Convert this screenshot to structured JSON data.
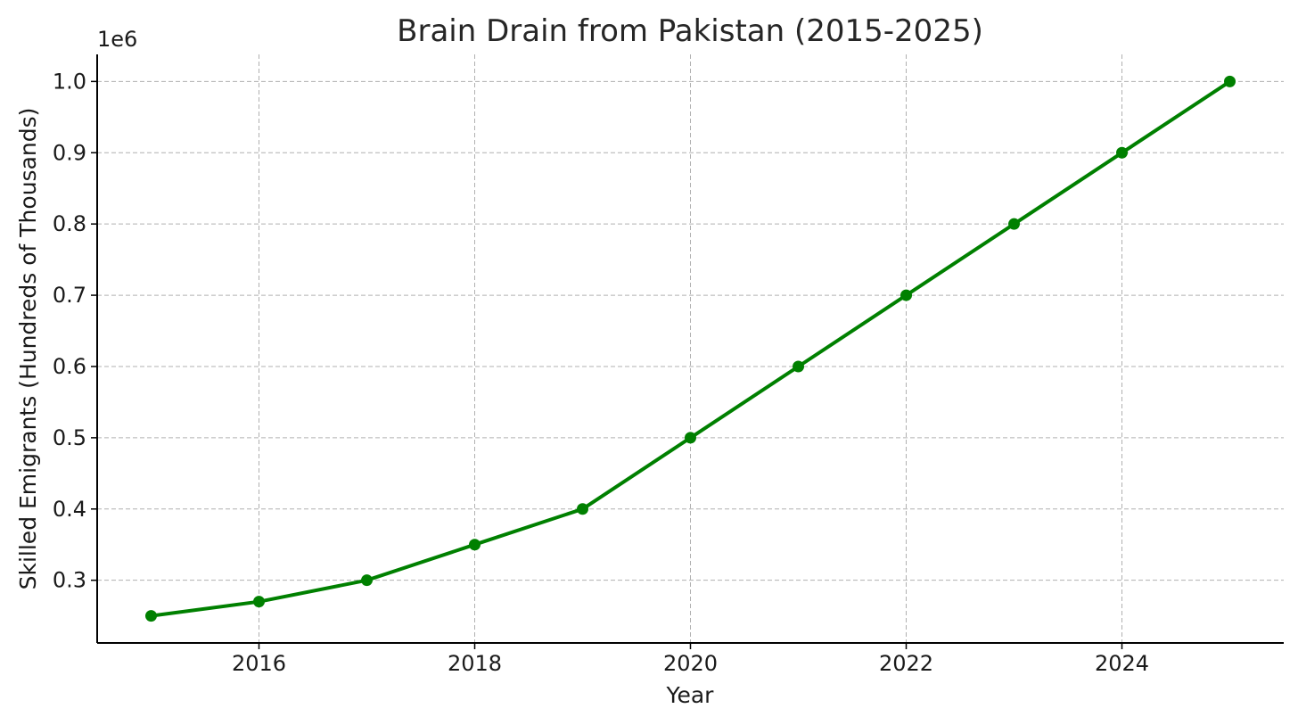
{
  "chart_data": {
    "type": "line",
    "title": "Brain Drain from Pakistan (2015-2025)",
    "xlabel": "Year",
    "ylabel": "Skilled Emigrants (Hundreds of Thousands)",
    "y_offset_label": "1e6",
    "xlim": [
      2014.5,
      2025.5
    ],
    "ylim": [
      0.212,
      1.038
    ],
    "x_ticks": [
      2016,
      2018,
      2020,
      2022,
      2024
    ],
    "x_tick_labels": [
      "2016",
      "2018",
      "2020",
      "2022",
      "2024"
    ],
    "y_ticks": [
      0.3,
      0.4,
      0.5,
      0.6,
      0.7,
      0.8,
      0.9,
      1.0
    ],
    "y_tick_labels": [
      "0.3",
      "0.4",
      "0.5",
      "0.6",
      "0.7",
      "0.8",
      "0.9",
      "1.0"
    ],
    "grid": true,
    "series": [
      {
        "color": "#008000",
        "marker": "circle",
        "x": [
          2015,
          2016,
          2017,
          2018,
          2019,
          2020,
          2021,
          2022,
          2023,
          2024,
          2025
        ],
        "y": [
          0.25,
          0.27,
          0.3,
          0.35,
          0.4,
          0.5,
          0.6,
          0.7,
          0.8,
          0.9,
          1.0
        ]
      }
    ]
  }
}
